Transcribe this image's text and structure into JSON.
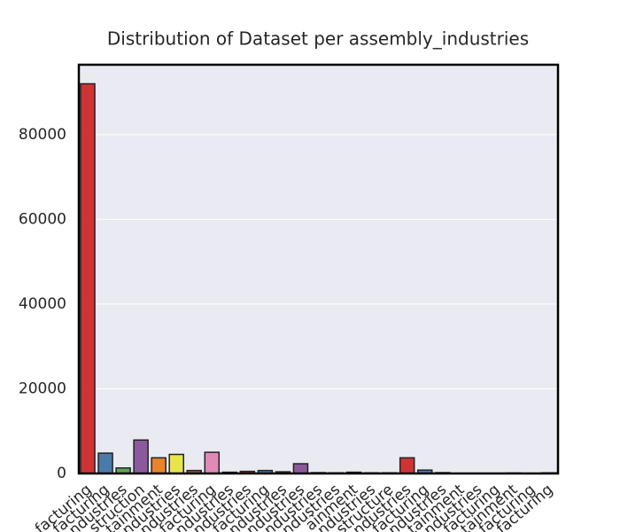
{
  "chart_data": {
    "type": "bar",
    "title": "Distribution of Dataset per assembly_industries",
    "categories": [
      "facturing",
      "facturing",
      "ndustries",
      "struction",
      "tainment",
      "ndustries",
      "ndustries",
      "facturing",
      "ndustries",
      "ndustries",
      "facturing",
      "ndustries",
      "ndustries",
      "ndustries",
      "ndustries",
      "ainment",
      "ndustries",
      "structure",
      "ndustries",
      "facturing",
      "ndustries",
      "tainment",
      "ndustries",
      "facturing",
      "tainment",
      "facturing",
      "facturing"
    ],
    "values": [
      92000,
      4800,
      1300,
      7900,
      3700,
      4500,
      700,
      5000,
      300,
      500,
      700,
      400,
      2300,
      200,
      150,
      300,
      150,
      150,
      3700,
      800,
      200,
      50,
      30,
      20,
      100,
      30,
      150
    ],
    "colors": [
      "#d03336",
      "#4a7bab",
      "#5ea35b",
      "#8c5a9c",
      "#e8842a",
      "#e6e64c",
      "#9a5f3c",
      "#e08ab8",
      "#999999"
    ],
    "ylim": [
      0,
      96500
    ],
    "yticks": [
      0,
      20000,
      40000,
      60000,
      80000
    ],
    "grid": true
  }
}
